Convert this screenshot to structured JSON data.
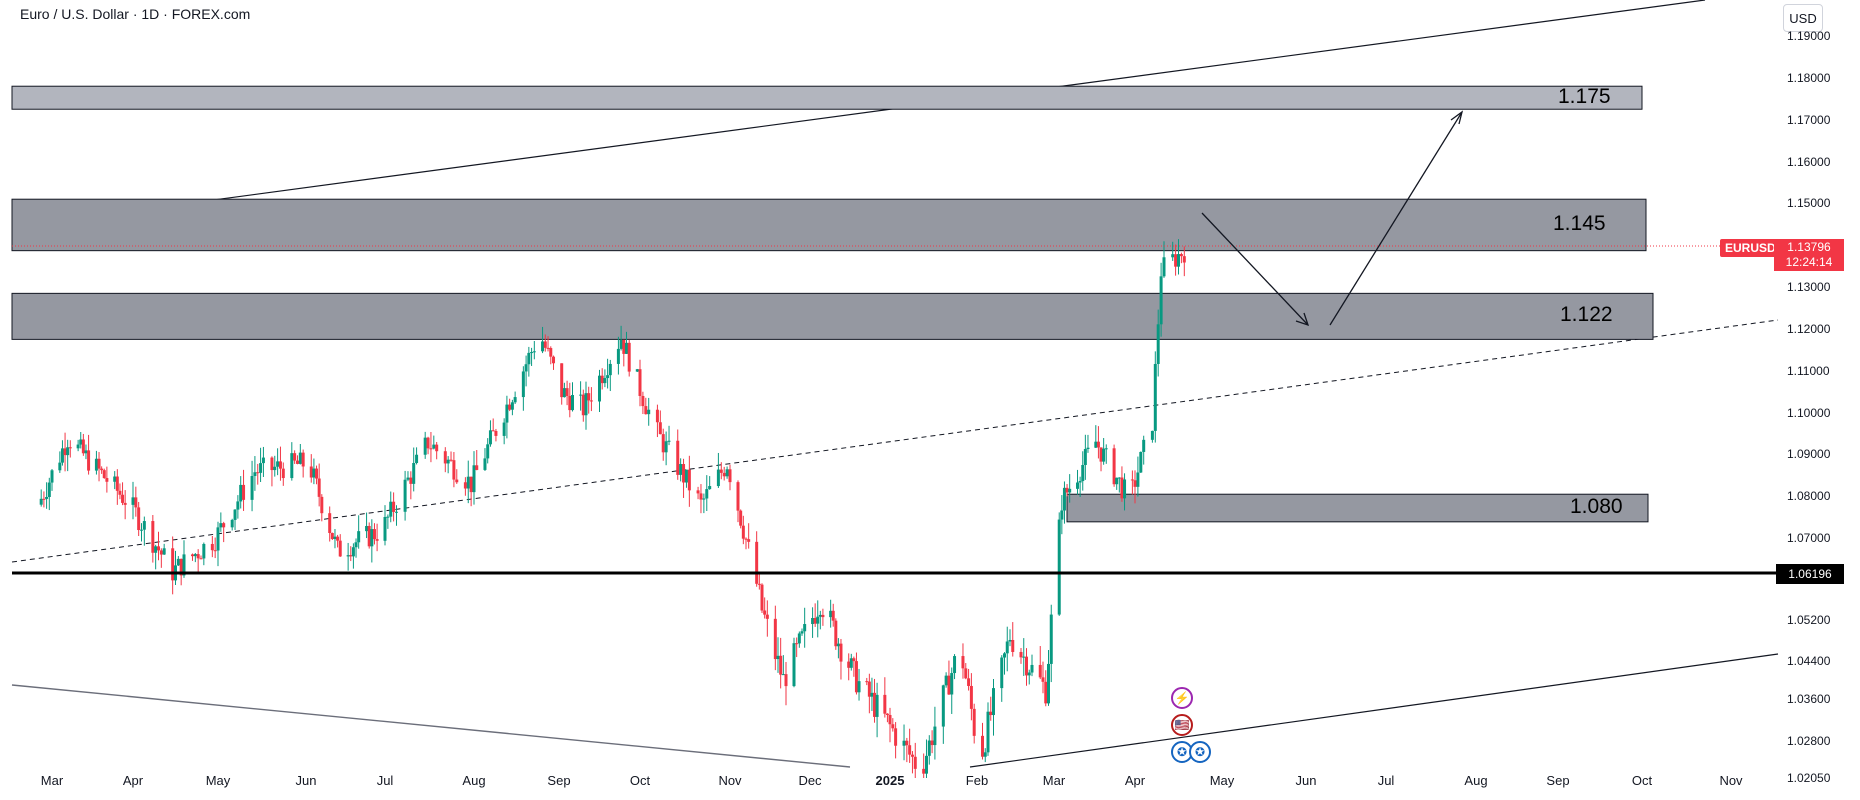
{
  "header": {
    "title": "Euro / U.S. Dollar · 1D · FOREX.com"
  },
  "currency_button": "USD",
  "symbol_tag": "EURUSD",
  "last_price": "1.13796",
  "countdown": "12:24:14",
  "level_line_tag": "1.06196",
  "zones": [
    {
      "label": "1.175",
      "top_price": 1.178,
      "bottom_price": 1.1725,
      "start": "Mar",
      "end": "Oct"
    },
    {
      "label": "1.145",
      "top_price": 1.151,
      "bottom_price": 1.1387,
      "start": "Mar",
      "end": "Oct"
    },
    {
      "label": "1.122",
      "top_price": 1.1285,
      "bottom_price": 1.1175,
      "start": "Mar",
      "end": "Oct"
    },
    {
      "label": "1.080",
      "top_price": 1.0805,
      "bottom_price": 1.0739,
      "start": "Mar",
      "end": "Oct"
    }
  ],
  "y_axis_ticks": [
    "1.19000",
    "1.18000",
    "1.17000",
    "1.16000",
    "1.15000",
    "1.14000",
    "1.13000",
    "1.12000",
    "1.11000",
    "1.10000",
    "1.09000",
    "1.08000",
    "1.07000",
    "1.06000",
    "1.05200",
    "1.04400",
    "1.03600",
    "1.02800",
    "1.02050"
  ],
  "x_axis_ticks": [
    "Mar",
    "Apr",
    "May",
    "Jun",
    "Jul",
    "Aug",
    "Sep",
    "Oct",
    "Nov",
    "Dec",
    "2025",
    "Feb",
    "Mar",
    "Apr",
    "May",
    "Jun",
    "Jul",
    "Aug",
    "Sep",
    "Oct",
    "Nov"
  ],
  "event_icons": [
    "lightning-icon",
    "us-flag-icon",
    "eu-flag-icon",
    "eu-flag-icon"
  ],
  "colors": {
    "up": "#089981",
    "down": "#f23645",
    "zone_fill": "#9598a1",
    "axis_text": "#131722"
  },
  "chart_data": {
    "type": "candlestick",
    "symbol": "EURUSD",
    "timeframe": "1D",
    "x_range": [
      "Mar",
      "Nov"
    ],
    "ylim": [
      1.0205,
      1.19
    ],
    "scale_note": "log-like axis compressed below 1.06",
    "waypoints": [
      [
        "2024-02-26",
        1.078
      ],
      [
        "2024-03-08",
        1.094
      ],
      [
        "2024-04-01",
        1.078
      ],
      [
        "2024-04-16",
        1.062
      ],
      [
        "2024-05-01",
        1.07
      ],
      [
        "2024-05-15",
        1.086
      ],
      [
        "2024-06-03",
        1.088
      ],
      [
        "2024-06-14",
        1.067
      ],
      [
        "2024-07-01",
        1.072
      ],
      [
        "2024-07-17",
        1.093
      ],
      [
        "2024-08-01",
        1.083
      ],
      [
        "2024-08-26",
        1.119
      ],
      [
        "2024-09-03",
        1.105
      ],
      [
        "2024-09-11",
        1.101
      ],
      [
        "2024-09-25",
        1.118
      ],
      [
        "2024-10-08",
        1.095
      ],
      [
        "2024-10-23",
        1.078
      ],
      [
        "2024-11-01",
        1.088
      ],
      [
        "2024-11-14",
        1.054
      ],
      [
        "2024-11-22",
        1.04
      ],
      [
        "2024-12-06",
        1.056
      ],
      [
        "2024-12-20",
        1.04
      ],
      [
        "2025-01-03",
        1.03
      ],
      [
        "2025-01-13",
        1.022
      ],
      [
        "2025-01-27",
        1.047
      ],
      [
        "2025-02-03",
        1.024
      ],
      [
        "2025-02-14",
        1.049
      ],
      [
        "2025-02-27",
        1.038
      ],
      [
        "2025-03-05",
        1.079
      ],
      [
        "2025-03-18",
        1.093
      ],
      [
        "2025-03-31",
        1.079
      ],
      [
        "2025-04-08",
        1.098
      ],
      [
        "2025-04-11",
        1.134
      ],
      [
        "2025-04-21",
        1.14
      ]
    ],
    "annotations": {
      "horizontal_line": 1.06196,
      "arrows": [
        {
          "from": [
            "2025-04-21",
            1.145
          ],
          "to": [
            "2025-06-01",
            1.12
          ]
        },
        {
          "from": [
            "2025-06-05",
            1.12
          ],
          "to": [
            "2025-07-30",
            1.171
          ]
        }
      ],
      "trend_lines": [
        "upper channel line",
        "lower channel line",
        "dashed mid-line",
        "descending support line"
      ]
    }
  }
}
